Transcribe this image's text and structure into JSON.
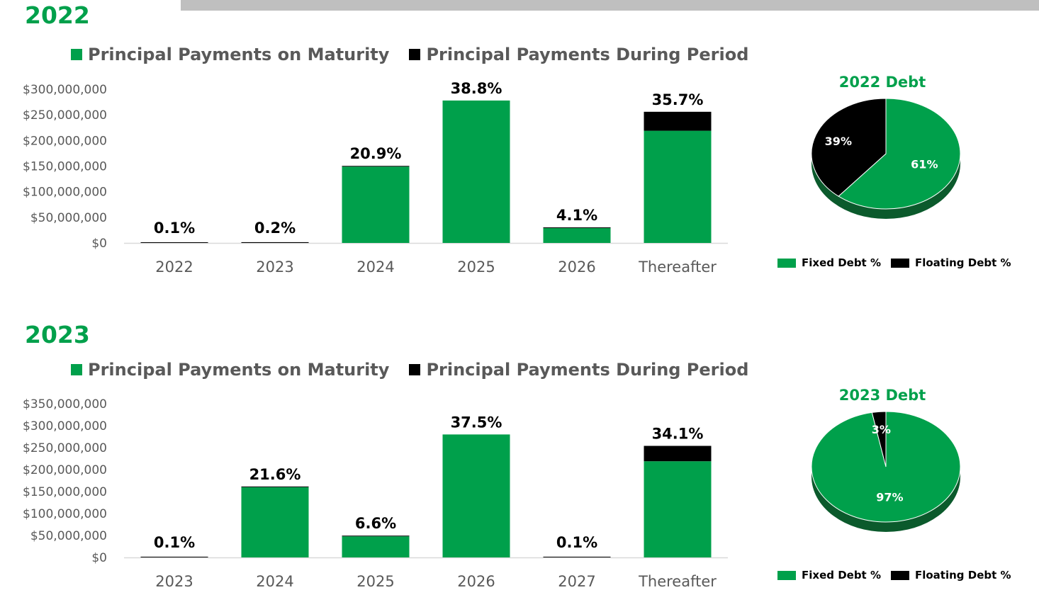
{
  "colors": {
    "green": "#00a04b",
    "black": "#000000",
    "darkgreen": "#0b5a2c",
    "grid": "#d9d9d9"
  },
  "sections": [
    {
      "year_title": "2022",
      "legend": {
        "maturity": "Principal Payments on Maturity",
        "during": "Principal Payments During Period"
      },
      "chart_data": {
        "type": "bar",
        "stacked": true,
        "categories": [
          "2022",
          "2023",
          "2024",
          "2025",
          "2026",
          "Thereafter"
        ],
        "series": [
          {
            "name": "Principal Payments on Maturity",
            "values": [
              0,
              0,
              149000000,
              278000000,
              29000000,
              219000000
            ]
          },
          {
            "name": "Principal Payments During Period",
            "values": [
              1000000,
              1500000,
              1000000,
              0,
              500000,
              37000000
            ]
          }
        ],
        "pct_labels": [
          "0.1%",
          "0.2%",
          "20.9%",
          "38.8%",
          "4.1%",
          "35.7%"
        ],
        "yticks": [
          "$0",
          "$50,000,000",
          "$100,000,000",
          "$150,000,000",
          "$200,000,000",
          "$250,000,000",
          "$300,000,000"
        ],
        "ylim": [
          0,
          300000000
        ]
      },
      "pie": {
        "title": "2022 Debt",
        "chart_data": {
          "type": "pie",
          "labels": [
            "Fixed Debt %",
            "Floating Debt %"
          ],
          "values": [
            61,
            39
          ],
          "display": [
            "61%",
            "39%"
          ]
        }
      }
    },
    {
      "year_title": "2023",
      "legend": {
        "maturity": "Principal Payments on Maturity",
        "during": "Principal Payments During Period"
      },
      "chart_data": {
        "type": "bar",
        "stacked": true,
        "categories": [
          "2023",
          "2024",
          "2025",
          "2026",
          "2027",
          "Thereafter"
        ],
        "series": [
          {
            "name": "Principal Payments on Maturity",
            "values": [
              0,
              160000000,
              48000000,
              280000000,
              0,
              219000000
            ]
          },
          {
            "name": "Principal Payments During Period",
            "values": [
              500000,
              1500000,
              1000000,
              0,
              500000,
              35000000
            ]
          }
        ],
        "pct_labels": [
          "0.1%",
          "21.6%",
          "6.6%",
          "37.5%",
          "0.1%",
          "34.1%"
        ],
        "yticks": [
          "$0",
          "$50,000,000",
          "$100,000,000",
          "$150,000,000",
          "$200,000,000",
          "$250,000,000",
          "$300,000,000",
          "$350,000,000"
        ],
        "ylim": [
          0,
          350000000
        ]
      },
      "pie": {
        "title": "2023 Debt",
        "chart_data": {
          "type": "pie",
          "labels": [
            "Fixed Debt %",
            "Floating Debt %"
          ],
          "values": [
            97,
            3
          ],
          "display": [
            "97%",
            "3%"
          ]
        }
      }
    }
  ]
}
